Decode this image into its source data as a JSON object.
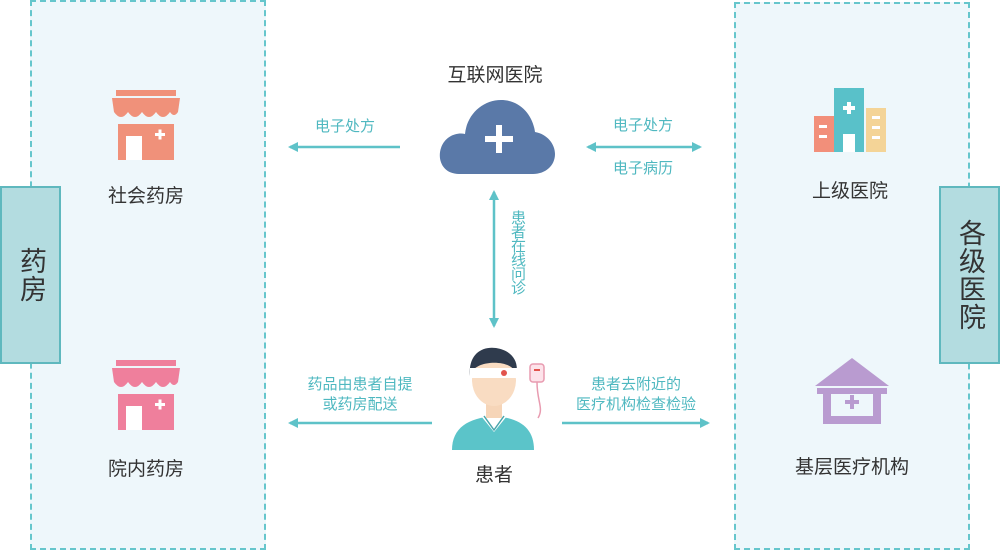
{
  "pharmacy_group": {
    "tab_label": "药房",
    "community": "社会药房",
    "in_hospital": "院内药房"
  },
  "hospital_group": {
    "tab_label": "各级医院",
    "upper": "上级医院",
    "primary": "基层医疗机构"
  },
  "center": {
    "internet_hospital": "互联网医院",
    "patient": "患者"
  },
  "flows": {
    "to_pharmacy": "电子处方",
    "to_hospital_top": "电子处方",
    "to_hospital_bottom": "电子病历",
    "online_consult": "患者在线问诊",
    "drug_line1": "药品由患者自提",
    "drug_line2": "或药房配送",
    "visit_line1": "患者去附近的",
    "visit_line2": "医疗机构检查检验"
  },
  "colors": {
    "arrow": "#5ec2c8",
    "cloud": "#5a79a8",
    "store_orange": "#f0917a",
    "store_pink": "#ef7f9c"
  }
}
